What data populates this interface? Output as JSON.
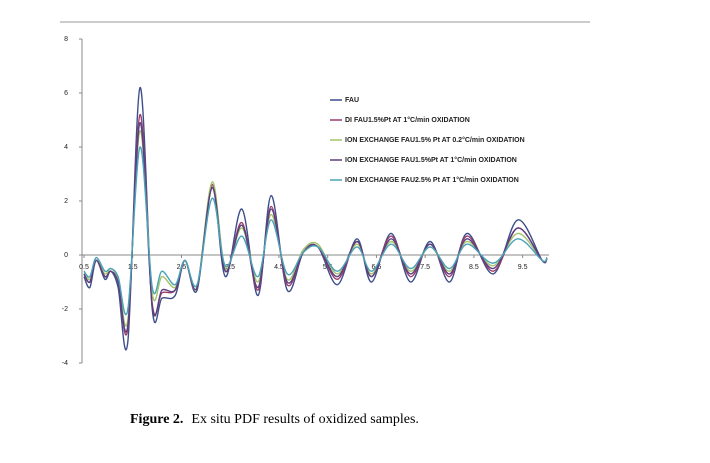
{
  "chart_data": {
    "type": "line",
    "x": [
      0.5,
      0.62,
      0.75,
      0.93,
      1.05,
      1.2,
      1.4,
      1.65,
      1.9,
      2.1,
      2.37,
      2.57,
      2.82,
      3.13,
      3.4,
      3.74,
      4.07,
      4.34,
      4.67,
      5.0,
      5.3,
      5.7,
      6.1,
      6.4,
      6.8,
      7.2,
      7.6,
      8.0,
      8.36,
      8.9,
      9.4,
      9.9,
      10
    ],
    "series": [
      {
        "name": "FAU",
        "color": "#3b4e8a",
        "values": [
          -0.8,
          -1.2,
          -0.2,
          -0.9,
          -0.6,
          -1.2,
          -3.2,
          6.2,
          -2.0,
          -1.6,
          -1.5,
          -0.2,
          -1.3,
          2.5,
          -0.8,
          1.7,
          -1.5,
          2.2,
          -1.3,
          0.1,
          0.3,
          -1.1,
          0.6,
          -1.0,
          0.8,
          -1.0,
          0.5,
          -1.0,
          0.8,
          -0.7,
          1.3,
          -0.2,
          -0.1
        ]
      },
      {
        "name": "DI FAU1.5%Pt AT 1°C/min OXIDATION",
        "color": "#9b3c6e",
        "values": [
          -0.7,
          -1.0,
          -0.2,
          -0.8,
          -0.6,
          -1.0,
          -2.7,
          5.2,
          -1.8,
          -1.4,
          -1.3,
          -0.2,
          -1.2,
          2.6,
          -0.6,
          1.2,
          -1.3,
          1.8,
          -1.1,
          0.1,
          0.3,
          -0.9,
          0.5,
          -0.8,
          0.7,
          -0.8,
          0.4,
          -0.8,
          0.7,
          -0.6,
          1.0,
          -0.2,
          -0.1
        ]
      },
      {
        "name": "ION EXCHANGE FAU1.5% Pt AT 0.2°C/min OXIDATION",
        "color": "#a4c36a",
        "values": [
          -0.6,
          -0.9,
          -0.2,
          -0.7,
          -0.5,
          -0.9,
          -2.4,
          4.6,
          -1.4,
          -0.8,
          -1.2,
          -0.2,
          -1.2,
          2.7,
          -0.5,
          1.0,
          -1.0,
          1.5,
          -0.9,
          0.2,
          0.4,
          -0.7,
          0.4,
          -0.7,
          0.5,
          -0.6,
          0.3,
          -0.6,
          0.5,
          -0.4,
          0.8,
          -0.2,
          -0.1
        ]
      },
      {
        "name": "ION EXCHANGE FAU1.5%Pt AT 1°C/min OXIDATION",
        "color": "#5b3f7e",
        "values": [
          -0.7,
          -1.0,
          -0.2,
          -0.8,
          -0.6,
          -1.0,
          -2.6,
          4.9,
          -1.9,
          -1.3,
          -1.3,
          -0.2,
          -1.2,
          2.5,
          -0.6,
          1.1,
          -1.2,
          1.7,
          -1.0,
          0.1,
          0.3,
          -0.8,
          0.5,
          -0.8,
          0.6,
          -0.7,
          0.4,
          -0.7,
          0.6,
          -0.5,
          1.0,
          -0.2,
          -0.1
        ]
      },
      {
        "name": "ION EXCHANGE FAU2.5% Pt AT 1°C/min OXIDATION",
        "color": "#4aa3b8",
        "values": [
          -0.6,
          -0.8,
          -0.1,
          -0.6,
          -0.5,
          -0.8,
          -2.0,
          4.0,
          -1.2,
          -0.6,
          -1.1,
          -0.2,
          -1.1,
          2.1,
          -0.4,
          0.7,
          -0.8,
          1.3,
          -0.7,
          0.1,
          0.3,
          -0.6,
          0.3,
          -0.6,
          0.4,
          -0.5,
          0.3,
          -0.5,
          0.4,
          -0.3,
          0.6,
          -0.2,
          -0.1
        ]
      }
    ],
    "xlim": [
      0.5,
      10
    ],
    "xticks": [
      0.5,
      1.5,
      2.5,
      3.5,
      4.5,
      5.5,
      6.5,
      7.5,
      8.5,
      9.5
    ],
    "ylim": [
      -4,
      8
    ],
    "yticks": [
      -4,
      -2,
      0,
      2,
      4,
      6,
      8
    ],
    "grid": false,
    "legend": "top-right"
  },
  "caption": {
    "label": "Figure 2.",
    "text": "Ex situ PDF results of oxidized samples."
  }
}
